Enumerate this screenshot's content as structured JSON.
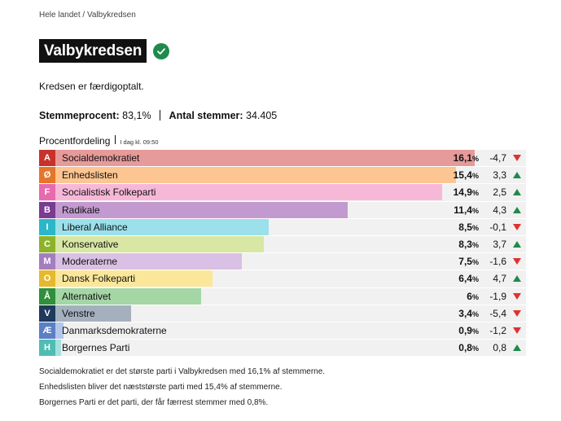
{
  "breadcrumb": {
    "items": [
      "Hele landet",
      "Valbykredsen"
    ],
    "separator": "/"
  },
  "header": {
    "title": "Valbykredsen",
    "verified_icon": "check-circle-icon"
  },
  "status_text": "Kredsen er færdigoptalt.",
  "turnout": {
    "label": "Stemmeprocent:",
    "value": "83,1%",
    "votes_label": "Antal stemmer:",
    "votes_value": "34.405"
  },
  "distribution": {
    "label": "Procentfordeling",
    "time": "I dag kl. 09:50"
  },
  "parties": [
    {
      "letter": "A",
      "name": "Socialdemokratiet",
      "pct": "16,1",
      "pct_num": 16.1,
      "change": "-4,7",
      "dir": "down",
      "color": "#e69a9a",
      "letter_color": "#c8322c"
    },
    {
      "letter": "Ø",
      "name": "Enhedslisten",
      "pct": "15,4",
      "pct_num": 15.4,
      "change": "3,3",
      "dir": "up",
      "color": "#fcc591",
      "letter_color": "#e3762a"
    },
    {
      "letter": "F",
      "name": "Socialistisk Folkeparti",
      "pct": "14,9",
      "pct_num": 14.9,
      "change": "2,5",
      "dir": "up",
      "color": "#f7b8d8",
      "letter_color": "#e86aae"
    },
    {
      "letter": "B",
      "name": "Radikale",
      "pct": "11,4",
      "pct_num": 11.4,
      "change": "4,3",
      "dir": "up",
      "color": "#c39ad0",
      "letter_color": "#7a3b91"
    },
    {
      "letter": "I",
      "name": "Liberal Alliance",
      "pct": "8,5",
      "pct_num": 8.5,
      "change": "-0,1",
      "dir": "down",
      "color": "#9be0ea",
      "letter_color": "#2cb7c9"
    },
    {
      "letter": "C",
      "name": "Konservative",
      "pct": "8,3",
      "pct_num": 8.3,
      "change": "3,7",
      "dir": "up",
      "color": "#d8e7a4",
      "letter_color": "#8db22b"
    },
    {
      "letter": "M",
      "name": "Moderaterne",
      "pct": "7,5",
      "pct_num": 7.5,
      "change": "-1,6",
      "dir": "down",
      "color": "#d9c0e4",
      "letter_color": "#a47dc0"
    },
    {
      "letter": "O",
      "name": "Dansk Folkeparti",
      "pct": "6,4",
      "pct_num": 6.4,
      "change": "4,7",
      "dir": "up",
      "color": "#fbe79a",
      "letter_color": "#e6b92d"
    },
    {
      "letter": "Å",
      "name": "Alternativet",
      "pct": "6",
      "pct_num": 6.0,
      "change": "-1,9",
      "dir": "down",
      "color": "#a4d6a6",
      "letter_color": "#2f8f3c"
    },
    {
      "letter": "V",
      "name": "Venstre",
      "pct": "3,4",
      "pct_num": 3.4,
      "change": "-5,4",
      "dir": "down",
      "color": "#a5b0bf",
      "letter_color": "#1f3a5c"
    },
    {
      "letter": "Æ",
      "name": "Danmarksdemokraterne",
      "pct": "0,9",
      "pct_num": 0.9,
      "change": "-1,2",
      "dir": "down",
      "color": "#b5c7e8",
      "letter_color": "#5b7fc4"
    },
    {
      "letter": "H",
      "name": "Borgernes Parti",
      "pct": "0,8",
      "pct_num": 0.8,
      "change": "0,8",
      "dir": "up",
      "color": "#a7e0dc",
      "letter_color": "#4fbdb3"
    }
  ],
  "pct_suffix": "%",
  "max_pct_scale": 18.0,
  "footnotes": [
    "Socialdemokratiet er det største parti i Valbykredsen med 16,1% af stemmerne.",
    "Enhedslisten bliver det næststørste parti med 15,4% af stemmerne.",
    "Borgernes Parti er det parti, der får færrest stemmer med 0,8%."
  ]
}
